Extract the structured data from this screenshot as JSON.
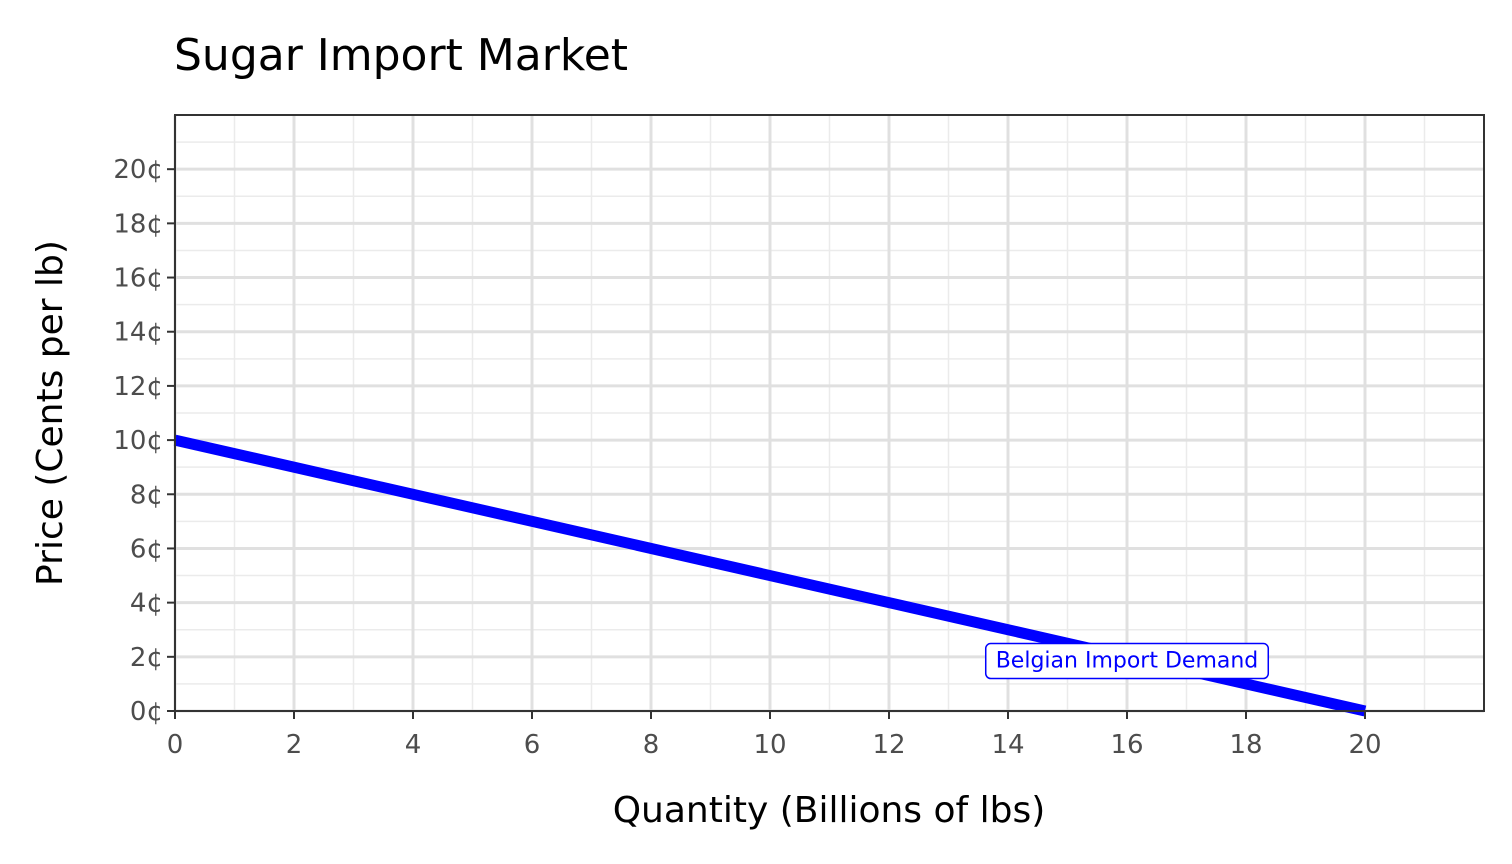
{
  "chart_data": {
    "type": "line",
    "title": "Sugar Import Market",
    "xlabel": "Quantity (Billions of lbs)",
    "ylabel": "Price (Cents per lb)",
    "xlim": [
      0,
      22
    ],
    "ylim": [
      0,
      22
    ],
    "x_ticks": [
      0,
      2,
      4,
      6,
      8,
      10,
      12,
      14,
      16,
      18,
      20
    ],
    "y_ticks": [
      0,
      2,
      4,
      6,
      8,
      10,
      12,
      14,
      16,
      18,
      20
    ],
    "x_tick_labels": [
      "0",
      "2",
      "4",
      "6",
      "8",
      "10",
      "12",
      "14",
      "16",
      "18",
      "20"
    ],
    "y_tick_labels": [
      "0¢",
      "2¢",
      "4¢",
      "6¢",
      "8¢",
      "10¢",
      "12¢",
      "14¢",
      "16¢",
      "18¢",
      "20¢"
    ],
    "grid": true,
    "series": [
      {
        "x": [
          0,
          20
        ],
        "y": [
          10,
          0
        ],
        "color": "#0000ff"
      }
    ],
    "annotations": [
      {
        "text": "Belgian Import Demand",
        "x": 16,
        "y": 1.9,
        "color": "#0000ff"
      }
    ]
  }
}
